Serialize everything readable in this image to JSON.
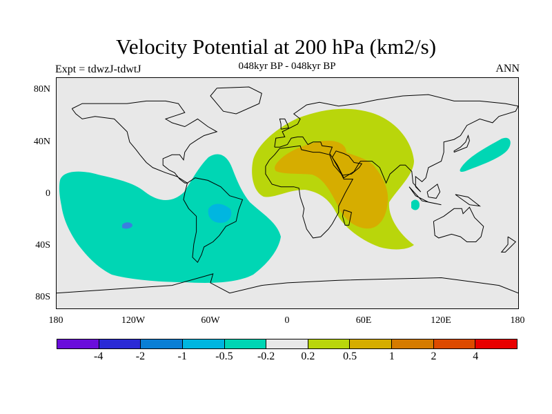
{
  "title": "Velocity Potential at 200 hPa (km2/s)",
  "subtitle": "048kyr BP - 048kyr BP",
  "left_label": "Expt = tdwzJ-tdwtJ",
  "right_label": "ANN",
  "y_ticks": [
    "80N",
    "40N",
    "0",
    "40S",
    "80S"
  ],
  "x_ticks": [
    "180",
    "120W",
    "60W",
    "0",
    "60E",
    "120E",
    "180"
  ],
  "colorbar": {
    "colors": [
      "#6a0ddb",
      "#2a2ad6",
      "#0a7fd6",
      "#00b6e0",
      "#00d6b4",
      "#e8e8e8",
      "#b9d60b",
      "#d6ad00",
      "#d67b00",
      "#dd4a00",
      "#e80000"
    ],
    "labels": [
      "-4",
      "-2",
      "-1",
      "-0.5",
      "-0.2",
      "0.2",
      "0.5",
      "1",
      "2",
      "4"
    ]
  },
  "colors": {
    "background": "#e8e8e8",
    "negative_light": "#00d6b4",
    "negative_mid": "#00b6e0",
    "negative_dark": "#3a7fe0",
    "positive_light": "#b9d60b",
    "positive_mid": "#d6ad00",
    "coast": "#000000"
  }
}
